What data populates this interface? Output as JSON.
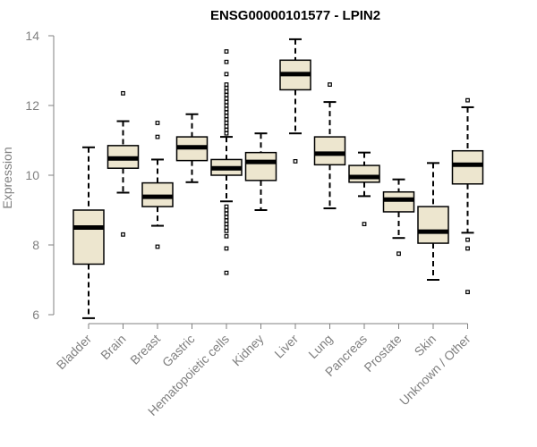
{
  "chart_data": {
    "type": "boxplot",
    "title": "ENSG00000101577 - LPIN2",
    "xlabel": "",
    "ylabel": "Expression",
    "ylim": [
      6,
      14
    ],
    "yticks": [
      "6",
      "8",
      "10",
      "12",
      "14"
    ],
    "box_color": "#ede6cf",
    "categories": [
      "Bladder",
      "Brain",
      "Breast",
      "Gastric",
      "Hematopoietic cells",
      "Kidney",
      "Liver",
      "Lung",
      "Pancreas",
      "Prostate",
      "Skin",
      "Unknown / Other"
    ],
    "boxes": [
      {
        "category": "Bladder",
        "whisker_low": 5.9,
        "q1": 7.45,
        "median": 8.5,
        "q3": 9.0,
        "whisker_high": 10.8,
        "outliers": []
      },
      {
        "category": "Brain",
        "whisker_low": 9.5,
        "q1": 10.2,
        "median": 10.48,
        "q3": 10.85,
        "whisker_high": 11.55,
        "outliers": [
          12.35,
          8.3
        ]
      },
      {
        "category": "Breast",
        "whisker_low": 8.55,
        "q1": 9.1,
        "median": 9.38,
        "q3": 9.78,
        "whisker_high": 10.45,
        "outliers": [
          11.5,
          11.1,
          7.95
        ]
      },
      {
        "category": "Gastric",
        "whisker_low": 9.8,
        "q1": 10.42,
        "median": 10.8,
        "q3": 11.1,
        "whisker_high": 11.75,
        "outliers": []
      },
      {
        "category": "Hematopoietic cells",
        "whisker_low": 9.25,
        "q1": 10.0,
        "median": 10.2,
        "q3": 10.45,
        "whisker_high": 11.1,
        "outliers": [
          13.55,
          13.25,
          12.9,
          12.6,
          12.5,
          12.4,
          12.3,
          12.2,
          12.1,
          12.0,
          11.9,
          11.8,
          11.7,
          11.6,
          11.5,
          11.4,
          11.3,
          11.2,
          9.1,
          9.0,
          8.9,
          8.8,
          8.7,
          8.6,
          8.5,
          8.4,
          8.25,
          7.9,
          7.2
        ]
      },
      {
        "category": "Kidney",
        "whisker_low": 9.0,
        "q1": 9.85,
        "median": 10.38,
        "q3": 10.65,
        "whisker_high": 11.2,
        "outliers": []
      },
      {
        "category": "Liver",
        "whisker_low": 11.2,
        "q1": 12.45,
        "median": 12.9,
        "q3": 13.3,
        "whisker_high": 13.9,
        "outliers": [
          10.4
        ]
      },
      {
        "category": "Lung",
        "whisker_low": 9.05,
        "q1": 10.3,
        "median": 10.62,
        "q3": 11.1,
        "whisker_high": 12.1,
        "outliers": [
          12.6
        ]
      },
      {
        "category": "Pancreas",
        "whisker_low": 9.4,
        "q1": 9.8,
        "median": 9.95,
        "q3": 10.28,
        "whisker_high": 10.65,
        "outliers": [
          8.6
        ]
      },
      {
        "category": "Prostate",
        "whisker_low": 8.2,
        "q1": 8.95,
        "median": 9.3,
        "q3": 9.52,
        "whisker_high": 9.88,
        "outliers": [
          7.75
        ]
      },
      {
        "category": "Skin",
        "whisker_low": 7.0,
        "q1": 8.05,
        "median": 8.38,
        "q3": 9.1,
        "whisker_high": 10.35,
        "outliers": []
      },
      {
        "category": "Unknown / Other",
        "whisker_low": 8.35,
        "q1": 9.75,
        "median": 10.3,
        "q3": 10.7,
        "whisker_high": 11.95,
        "outliers": [
          12.15,
          8.15,
          7.9,
          6.65
        ]
      }
    ]
  }
}
